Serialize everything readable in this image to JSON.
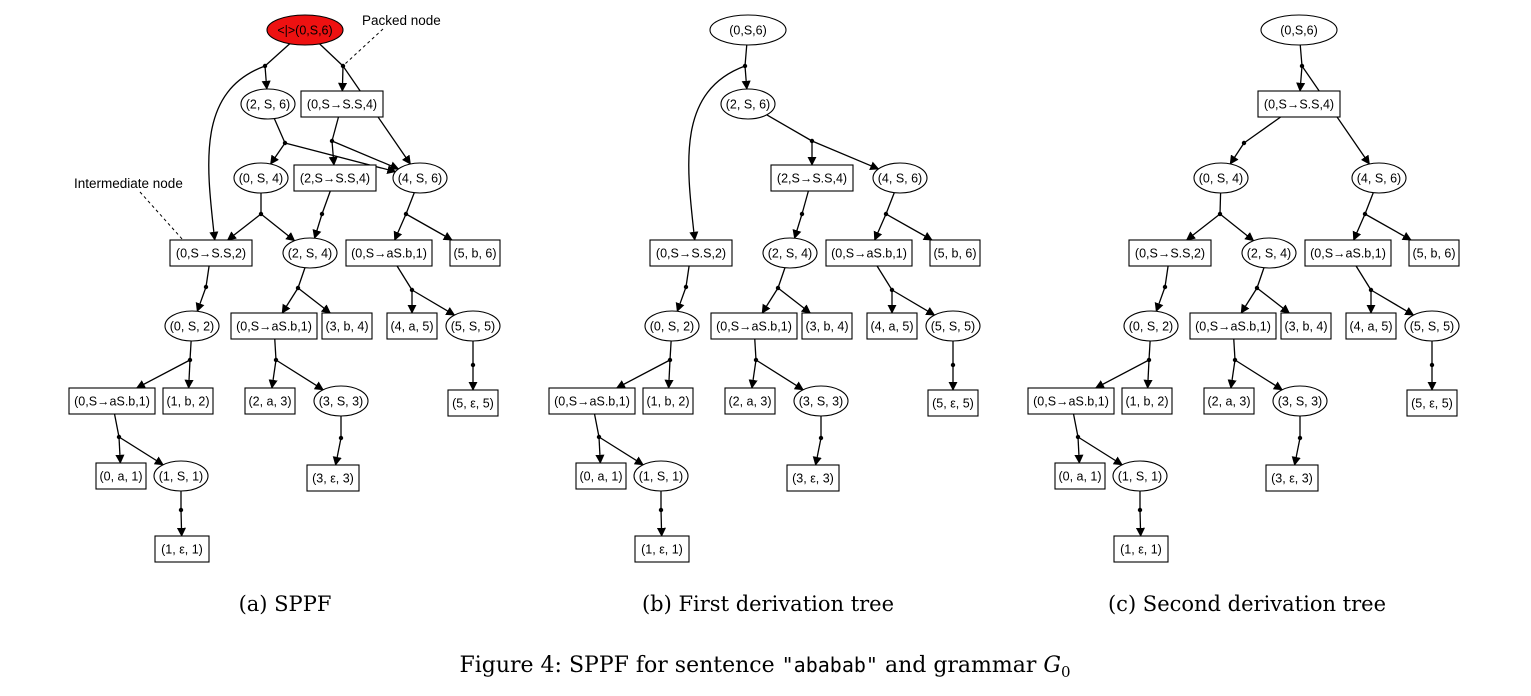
{
  "figure": {
    "caption_prefix": "Figure 4: SPPF for sentence ",
    "caption_sentence": "\"ababab\"",
    "caption_mid": " and grammar ",
    "caption_grammar": "G",
    "caption_grammar_sub": "0"
  },
  "panels": [
    {
      "id": "a",
      "caption": "(a) SPPF",
      "annotations": [
        {
          "id": "ann_packed",
          "text": "Packed node"
        },
        {
          "id": "ann_intermediate",
          "text": "Intermediate node"
        }
      ],
      "nodes": [
        {
          "id": "root",
          "label": "<|>(0,S,6)",
          "shape": "ellipse",
          "fill": "#ee1111"
        },
        {
          "id": "n2S6",
          "label": "(2, S, 6)",
          "shape": "ellipse"
        },
        {
          "id": "n0SS4",
          "label": "(0,S→S.S,4)",
          "shape": "box"
        },
        {
          "id": "n0S4",
          "label": "(0, S, 4)",
          "shape": "ellipse"
        },
        {
          "id": "n2SS4",
          "label": "(2,S→S.S,4)",
          "shape": "box"
        },
        {
          "id": "n4S6",
          "label": "(4, S, 6)",
          "shape": "ellipse"
        },
        {
          "id": "n0SS2",
          "label": "(0,S→S.S,2)",
          "shape": "box"
        },
        {
          "id": "n2S4",
          "label": "(2, S, 4)",
          "shape": "ellipse"
        },
        {
          "id": "n0aSb1r",
          "label": "(0,S→aS.b,1)",
          "shape": "box"
        },
        {
          "id": "n5b6",
          "label": "(5, b, 6)",
          "shape": "box"
        },
        {
          "id": "n0S2",
          "label": "(0, S, 2)",
          "shape": "ellipse"
        },
        {
          "id": "n0aSb1m",
          "label": "(0,S→aS.b,1)",
          "shape": "box"
        },
        {
          "id": "n3b4",
          "label": "(3, b, 4)",
          "shape": "box"
        },
        {
          "id": "n4a5",
          "label": "(4, a, 5)",
          "shape": "box"
        },
        {
          "id": "n5S5",
          "label": "(5, S, 5)",
          "shape": "ellipse"
        },
        {
          "id": "n0aSb1l",
          "label": "(0,S→aS.b,1)",
          "shape": "box"
        },
        {
          "id": "n1b2",
          "label": "(1, b, 2)",
          "shape": "box"
        },
        {
          "id": "n2a3",
          "label": "(2, a, 3)",
          "shape": "box"
        },
        {
          "id": "n3S3",
          "label": "(3, S, 3)",
          "shape": "ellipse"
        },
        {
          "id": "n5e5",
          "label": "(5, ε, 5)",
          "shape": "box"
        },
        {
          "id": "n0a1",
          "label": "(0, a, 1)",
          "shape": "box"
        },
        {
          "id": "n1S1",
          "label": "(1, S, 1)",
          "shape": "ellipse"
        },
        {
          "id": "n3e3",
          "label": "(3, ε, 3)",
          "shape": "box"
        },
        {
          "id": "n1e1",
          "label": "(1, ε, 1)",
          "shape": "box"
        }
      ]
    },
    {
      "id": "b",
      "caption": "(b) First derivation tree",
      "nodes": [
        {
          "id": "root",
          "label": "(0,S,6)",
          "shape": "ellipse"
        },
        {
          "id": "n2S6",
          "label": "(2, S, 6)",
          "shape": "ellipse"
        },
        {
          "id": "n2SS4",
          "label": "(2,S→S.S,4)",
          "shape": "box"
        },
        {
          "id": "n4S6",
          "label": "(4, S, 6)",
          "shape": "ellipse"
        },
        {
          "id": "n0SS2",
          "label": "(0,S→S.S,2)",
          "shape": "box"
        },
        {
          "id": "n2S4",
          "label": "(2, S, 4)",
          "shape": "ellipse"
        },
        {
          "id": "n0aSb1r",
          "label": "(0,S→aS.b,1)",
          "shape": "box"
        },
        {
          "id": "n5b6",
          "label": "(5, b, 6)",
          "shape": "box"
        },
        {
          "id": "n0S2",
          "label": "(0, S, 2)",
          "shape": "ellipse"
        },
        {
          "id": "n0aSb1m",
          "label": "(0,S→aS.b,1)",
          "shape": "box"
        },
        {
          "id": "n3b4",
          "label": "(3, b, 4)",
          "shape": "box"
        },
        {
          "id": "n4a5",
          "label": "(4, a, 5)",
          "shape": "box"
        },
        {
          "id": "n5S5",
          "label": "(5, S, 5)",
          "shape": "ellipse"
        },
        {
          "id": "n0aSb1l",
          "label": "(0,S→aS.b,1)",
          "shape": "box"
        },
        {
          "id": "n1b2",
          "label": "(1, b, 2)",
          "shape": "box"
        },
        {
          "id": "n2a3",
          "label": "(2, a, 3)",
          "shape": "box"
        },
        {
          "id": "n3S3",
          "label": "(3, S, 3)",
          "shape": "ellipse"
        },
        {
          "id": "n5e5",
          "label": "(5, ε, 5)",
          "shape": "box"
        },
        {
          "id": "n0a1",
          "label": "(0, a, 1)",
          "shape": "box"
        },
        {
          "id": "n1S1",
          "label": "(1, S, 1)",
          "shape": "ellipse"
        },
        {
          "id": "n3e3",
          "label": "(3, ε, 3)",
          "shape": "box"
        },
        {
          "id": "n1e1",
          "label": "(1, ε, 1)",
          "shape": "box"
        }
      ]
    },
    {
      "id": "c",
      "caption": "(c) Second derivation tree",
      "nodes": [
        {
          "id": "root",
          "label": "(0,S,6)",
          "shape": "ellipse"
        },
        {
          "id": "n0SS4",
          "label": "(0,S→S.S,4)",
          "shape": "box"
        },
        {
          "id": "n0S4",
          "label": "(0, S, 4)",
          "shape": "ellipse"
        },
        {
          "id": "n4S6",
          "label": "(4, S, 6)",
          "shape": "ellipse"
        },
        {
          "id": "n0SS2",
          "label": "(0,S→S.S,2)",
          "shape": "box"
        },
        {
          "id": "n2S4",
          "label": "(2, S, 4)",
          "shape": "ellipse"
        },
        {
          "id": "n0aSb1r",
          "label": "(0,S→aS.b,1)",
          "shape": "box"
        },
        {
          "id": "n5b6",
          "label": "(5, b, 6)",
          "shape": "box"
        },
        {
          "id": "n0S2",
          "label": "(0, S, 2)",
          "shape": "ellipse"
        },
        {
          "id": "n0aSb1m",
          "label": "(0,S→aS.b,1)",
          "shape": "box"
        },
        {
          "id": "n3b4",
          "label": "(3, b, 4)",
          "shape": "box"
        },
        {
          "id": "n4a5",
          "label": "(4, a, 5)",
          "shape": "box"
        },
        {
          "id": "n5S5",
          "label": "(5, S, 5)",
          "shape": "ellipse"
        },
        {
          "id": "n0aSb1l",
          "label": "(0,S→aS.b,1)",
          "shape": "box"
        },
        {
          "id": "n1b2",
          "label": "(1, b, 2)",
          "shape": "box"
        },
        {
          "id": "n2a3",
          "label": "(2, a, 3)",
          "shape": "box"
        },
        {
          "id": "n3S3",
          "label": "(3, S, 3)",
          "shape": "ellipse"
        },
        {
          "id": "n5e5",
          "label": "(5, ε, 5)",
          "shape": "box"
        },
        {
          "id": "n0a1",
          "label": "(0, a, 1)",
          "shape": "box"
        },
        {
          "id": "n1S1",
          "label": "(1, S, 1)",
          "shape": "ellipse"
        },
        {
          "id": "n3e3",
          "label": "(3, ε, 3)",
          "shape": "box"
        },
        {
          "id": "n1e1",
          "label": "(1, ε, 1)",
          "shape": "box"
        }
      ]
    }
  ]
}
